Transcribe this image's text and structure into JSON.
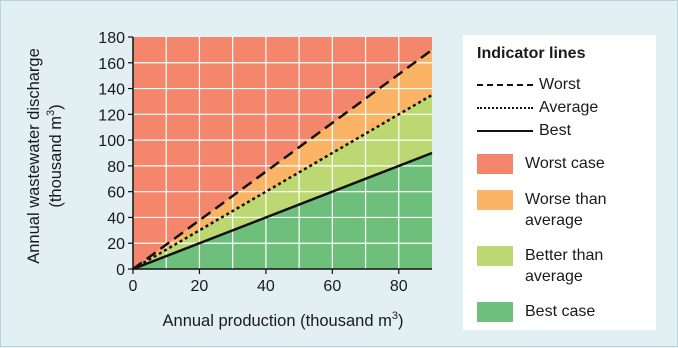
{
  "chart_data": {
    "type": "line",
    "xlabel": "Annual production (thousand m³)",
    "xlabel_main": "Annual production (thousand m",
    "xlabel_sup": "3",
    "xlabel_tail": ")",
    "ylabel_line1": "Annual wastewater discharge",
    "ylabel_line2_main": "(thousand m",
    "ylabel_line2_sup": "3",
    "ylabel_line2_tail": ")",
    "xlim": [
      0,
      90
    ],
    "ylim": [
      0,
      180
    ],
    "x_ticks": [
      0,
      20,
      40,
      60,
      80
    ],
    "y_ticks": [
      0,
      20,
      40,
      60,
      80,
      100,
      120,
      140,
      160,
      180
    ],
    "grid": true,
    "series": [
      {
        "name": "Worst",
        "style": "dashed",
        "x": [
          0,
          90
        ],
        "y": [
          0,
          170
        ]
      },
      {
        "name": "Average",
        "style": "dotted",
        "x": [
          0,
          90
        ],
        "y": [
          0,
          135
        ]
      },
      {
        "name": "Best",
        "style": "solid",
        "x": [
          0,
          90
        ],
        "y": [
          0,
          90
        ]
      }
    ],
    "regions": [
      {
        "name": "Worst case",
        "color": "#f4866c"
      },
      {
        "name": "Worse than average",
        "color": "#fbb466"
      },
      {
        "name": "Better than average",
        "color": "#bcd872"
      },
      {
        "name": "Best case",
        "color": "#6dbf7b"
      }
    ],
    "legend_placement": "right"
  },
  "legend": {
    "title": "Indicator lines",
    "lines": [
      "Worst",
      "Average",
      "Best"
    ],
    "regions": [
      {
        "line1": "Worst case",
        "line2": ""
      },
      {
        "line1": "Worse than",
        "line2": "average"
      },
      {
        "line1": "Better than",
        "line2": "average"
      },
      {
        "line1": "Best case",
        "line2": ""
      }
    ]
  }
}
